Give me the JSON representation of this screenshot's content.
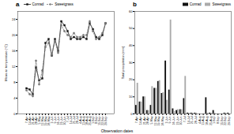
{
  "chart_data": [
    {
      "type": "line",
      "title": "a",
      "xlabel": "Observation dates",
      "ylabel": "Mean air temperature (°C)",
      "categories": [
        "7-Apr",
        "14-Apr",
        "21-Apr",
        "28-Apr",
        "5-May",
        "12-May",
        "19-May",
        "26-May",
        "2-Jun",
        "9-Jun",
        "16-Jun",
        "23-Jun",
        "30-Jun",
        "7-Jul",
        "14-Jul",
        "21-Jul",
        "28-Jul",
        "4-Aug",
        "11-Aug",
        "18-Aug",
        "25-Aug",
        "1-Sep",
        "8-Sep",
        "15-Sep",
        "22-Sep",
        "29-Sep"
      ],
      "series": [
        {
          "name": "Conrad",
          "color": "#111111",
          "marker": "square",
          "line_style": "solid",
          "values": [
            6.5,
            6.2,
            5.0,
            11.8,
            8.5,
            9.0,
            18.0,
            19.0,
            14.8,
            19.0,
            16.0,
            23.5,
            22.5,
            21.0,
            19.0,
            19.5,
            19.0,
            19.0,
            19.5,
            19.0,
            23.0,
            21.5,
            19.5,
            19.0,
            20.0,
            23.0
          ]
        },
        {
          "name": "Sweetgrass",
          "color": "#777777",
          "marker": "circle",
          "line_style": "dashed",
          "values": [
            6.0,
            5.0,
            4.5,
            13.5,
            7.5,
            11.0,
            17.0,
            18.0,
            15.0,
            18.5,
            15.5,
            22.5,
            21.0,
            20.0,
            19.5,
            20.5,
            19.5,
            19.5,
            20.0,
            20.0,
            23.5,
            21.0,
            19.0,
            19.5,
            20.5,
            23.0
          ]
        }
      ],
      "ylim": [
        0,
        26
      ],
      "yticks": [
        0,
        4,
        8,
        12,
        16,
        20,
        24
      ],
      "grid": false,
      "legend": "upper left"
    },
    {
      "type": "bar",
      "title": "b",
      "ylabel": "Total precipitation (mm)",
      "categories": [
        "7-Apr",
        "14-Apr",
        "21-Apr",
        "28-Apr",
        "5-May",
        "12-May",
        "19-May",
        "26-May",
        "2-Jun",
        "9-Jun",
        "16-Jun",
        "23-Jun",
        "30-Jun",
        "7-Jul",
        "14-Jul",
        "21-Jul",
        "28-Jul",
        "4-Aug",
        "11-Aug",
        "18-Aug",
        "25-Aug",
        "1-Sep",
        "8-Sep",
        "15-Sep",
        "22-Sep",
        "29-Sep"
      ],
      "series": [
        {
          "name": "Conrad",
          "color": "#111111",
          "values": [
            5.0,
            7.0,
            10.0,
            2.0,
            5.0,
            15.0,
            19.0,
            12.0,
            31.0,
            14.0,
            3.0,
            2.0,
            2.5,
            9.0,
            0.5,
            0.5,
            0.5,
            0.0,
            0.0,
            9.5,
            0.5,
            2.0,
            0.0,
            0.0,
            0.5,
            0.5
          ]
        },
        {
          "name": "Sweetgrass",
          "color": "#aaaaaa",
          "values": [
            18.0,
            7.0,
            10.0,
            2.0,
            16.0,
            15.0,
            19.5,
            12.5,
            8.0,
            55.0,
            1.5,
            2.5,
            2.5,
            22.0,
            0.5,
            0.5,
            0.5,
            0.0,
            0.0,
            0.5,
            0.5,
            0.5,
            0.0,
            0.0,
            0.5,
            0.0
          ]
        }
      ],
      "ylim": [
        0,
        60
      ],
      "yticks": [
        0,
        10,
        20,
        30,
        40,
        50,
        60
      ],
      "grid": false,
      "legend": "upper right"
    }
  ]
}
